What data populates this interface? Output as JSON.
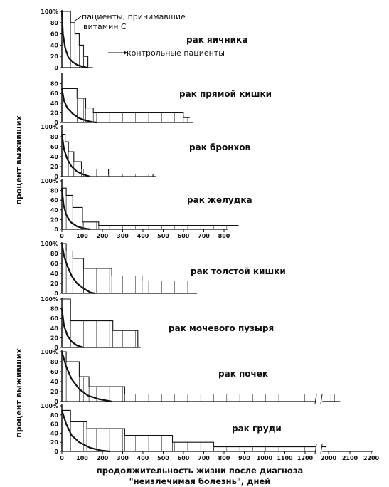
{
  "chart_data": {
    "type": "line",
    "y_percent_label": "%",
    "ylabel_upper": "процент выживших",
    "ylabel_lower": "процент выживших",
    "xlabel_line1": "продолжительность жизни после диагноза",
    "xlabel_line2": "\"неизлечимая болезнь\", дней",
    "legend_vitamin": "пациенты, принимавшие витамин С",
    "legend_vitamin_line1": "пациенты, принимавшие",
    "legend_vitamin_line2": "витамин С",
    "legend_control": "контрольные пациенты",
    "x_ticks_mid": [
      "0",
      "100",
      "200",
      "300",
      "400",
      "500",
      "600",
      "700",
      "800"
    ],
    "x_ticks_bottom": [
      "0",
      "100",
      "200",
      "300",
      "400",
      "500",
      "600",
      "700",
      "800",
      "900",
      "1000",
      "1100",
      "1200",
      "2000",
      "2100",
      "2200"
    ],
    "panels": [
      {
        "title": "рак яичника",
        "y_ticks": [
          "100",
          "80",
          "60",
          "40",
          "20",
          "0"
        ],
        "vitamin": [
          [
            0,
            100
          ],
          [
            40,
            100
          ],
          [
            40,
            80
          ],
          [
            60,
            80
          ],
          [
            60,
            60
          ],
          [
            80,
            60
          ],
          [
            80,
            40
          ],
          [
            100,
            40
          ],
          [
            100,
            20
          ],
          [
            120,
            20
          ],
          [
            120,
            0
          ],
          [
            130,
            0
          ]
        ],
        "control": [
          [
            0,
            100
          ],
          [
            5,
            60
          ],
          [
            15,
            35
          ],
          [
            30,
            18
          ],
          [
            50,
            10
          ],
          [
            70,
            5
          ],
          [
            95,
            2
          ],
          [
            115,
            0
          ]
        ]
      },
      {
        "title": "рак прямой кишки",
        "y_ticks": [
          "80",
          "60",
          "40",
          "20",
          "0"
        ],
        "vitamin": [
          [
            0,
            70
          ],
          [
            70,
            70
          ],
          [
            70,
            50
          ],
          [
            110,
            50
          ],
          [
            110,
            30
          ],
          [
            145,
            30
          ],
          [
            145,
            20
          ],
          [
            560,
            20
          ],
          [
            560,
            10
          ],
          [
            590,
            10
          ]
        ],
        "control": [
          [
            0,
            70
          ],
          [
            10,
            45
          ],
          [
            25,
            30
          ],
          [
            50,
            18
          ],
          [
            80,
            9
          ],
          [
            110,
            4
          ],
          [
            140,
            1
          ],
          [
            160,
            0
          ]
        ]
      },
      {
        "title": "рак бронхов",
        "y_ticks": [
          "100",
          "80",
          "60",
          "40",
          "20",
          "0"
        ],
        "vitamin": [
          [
            0,
            85
          ],
          [
            15,
            85
          ],
          [
            15,
            70
          ],
          [
            30,
            70
          ],
          [
            30,
            50
          ],
          [
            55,
            50
          ],
          [
            55,
            30
          ],
          [
            90,
            30
          ],
          [
            90,
            15
          ],
          [
            215,
            15
          ],
          [
            215,
            5
          ],
          [
            420,
            5
          ],
          [
            420,
            0
          ]
        ],
        "control": [
          [
            0,
            85
          ],
          [
            10,
            55
          ],
          [
            25,
            35
          ],
          [
            45,
            20
          ],
          [
            70,
            10
          ],
          [
            100,
            4
          ],
          [
            130,
            0
          ]
        ]
      },
      {
        "title": "рак желудка",
        "y_ticks": [
          "100",
          "80",
          "60",
          "40",
          "20",
          "0"
        ],
        "vitamin": [
          [
            0,
            85
          ],
          [
            20,
            85
          ],
          [
            20,
            70
          ],
          [
            50,
            70
          ],
          [
            50,
            45
          ],
          [
            95,
            45
          ],
          [
            95,
            15
          ],
          [
            170,
            15
          ],
          [
            170,
            8
          ],
          [
            815,
            8
          ]
        ],
        "control": [
          [
            0,
            85
          ],
          [
            8,
            50
          ],
          [
            20,
            30
          ],
          [
            40,
            15
          ],
          [
            70,
            6
          ],
          [
            100,
            2
          ],
          [
            130,
            0
          ]
        ]
      },
      {
        "title": "рак толстой кишки",
        "y_ticks": [
          "100",
          "80",
          "60",
          "40",
          "20",
          "0"
        ],
        "vitamin": [
          [
            0,
            100
          ],
          [
            20,
            100
          ],
          [
            20,
            85
          ],
          [
            50,
            85
          ],
          [
            50,
            70
          ],
          [
            100,
            70
          ],
          [
            100,
            50
          ],
          [
            230,
            50
          ],
          [
            230,
            35
          ],
          [
            370,
            35
          ],
          [
            370,
            25
          ],
          [
            610,
            25
          ]
        ],
        "control": [
          [
            0,
            100
          ],
          [
            10,
            75
          ],
          [
            25,
            55
          ],
          [
            45,
            35
          ],
          [
            70,
            20
          ],
          [
            100,
            10
          ],
          [
            130,
            2
          ],
          [
            150,
            0
          ]
        ]
      },
      {
        "title": "рак мочевого пузыря",
        "y_ticks": [
          "100",
          "80",
          "60",
          "40",
          "20",
          "0"
        ],
        "vitamin": [
          [
            0,
            100
          ],
          [
            40,
            100
          ],
          [
            40,
            55
          ],
          [
            235,
            55
          ],
          [
            235,
            35
          ],
          [
            350,
            35
          ],
          [
            350,
            0
          ]
        ],
        "control": [
          [
            0,
            80
          ],
          [
            10,
            45
          ],
          [
            25,
            25
          ],
          [
            45,
            12
          ],
          [
            70,
            4
          ],
          [
            100,
            0
          ]
        ]
      },
      {
        "title": "рак почек",
        "y_ticks": [
          "100",
          "80",
          "60",
          "40",
          "20",
          "0"
        ],
        "vitamin": [
          [
            0,
            100
          ],
          [
            20,
            100
          ],
          [
            20,
            80
          ],
          [
            80,
            80
          ],
          [
            80,
            50
          ],
          [
            125,
            50
          ],
          [
            125,
            30
          ],
          [
            290,
            30
          ],
          [
            290,
            15
          ],
          [
            1270,
            15
          ]
        ],
        "control": [
          [
            0,
            100
          ],
          [
            20,
            70
          ],
          [
            45,
            45
          ],
          [
            80,
            25
          ],
          [
            120,
            12
          ],
          [
            170,
            5
          ],
          [
            230,
            0
          ]
        ]
      },
      {
        "title": "рак груди",
        "y_ticks": [
          "100",
          "80",
          "60",
          "40",
          "20",
          "0"
        ],
        "vitamin": [
          [
            0,
            90
          ],
          [
            40,
            90
          ],
          [
            40,
            65
          ],
          [
            115,
            65
          ],
          [
            115,
            50
          ],
          [
            290,
            50
          ],
          [
            290,
            35
          ],
          [
            510,
            35
          ],
          [
            510,
            20
          ],
          [
            700,
            20
          ],
          [
            700,
            10
          ],
          [
            1220,
            10
          ]
        ],
        "control": [
          [
            0,
            90
          ],
          [
            20,
            60
          ],
          [
            45,
            35
          ],
          [
            80,
            20
          ],
          [
            130,
            8
          ],
          [
            180,
            2
          ],
          [
            220,
            0
          ]
        ]
      }
    ]
  }
}
